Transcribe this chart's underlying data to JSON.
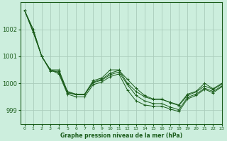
{
  "title": "Graphe pression niveau de la mer (hPa)",
  "background_color": "#cceedd",
  "grid_color": "#aaccbb",
  "line_color": "#1a5c1a",
  "xlim": [
    -0.5,
    23
  ],
  "ylim": [
    998.5,
    1003.0
  ],
  "yticks": [
    999,
    1000,
    1001,
    1002
  ],
  "xticks": [
    0,
    1,
    2,
    3,
    4,
    5,
    6,
    7,
    8,
    9,
    10,
    11,
    12,
    13,
    14,
    15,
    16,
    17,
    18,
    19,
    20,
    21,
    22,
    23
  ],
  "series": [
    [
      1002.7,
      1002.0,
      1001.0,
      1000.5,
      1000.5,
      999.7,
      999.6,
      999.6,
      1000.1,
      1000.2,
      1000.5,
      1000.5,
      1000.0,
      999.7,
      999.5,
      999.4,
      999.4,
      999.3,
      999.2,
      999.6,
      999.7,
      1000.0,
      999.8,
      1000.0
    ],
    [
      1002.7,
      1001.9,
      1001.0,
      1000.45,
      1000.45,
      999.68,
      999.58,
      999.58,
      1000.05,
      1000.15,
      1000.38,
      1000.48,
      1000.15,
      999.82,
      999.55,
      999.42,
      999.42,
      999.28,
      999.18,
      999.55,
      999.68,
      999.9,
      999.78,
      999.96
    ],
    [
      1002.7,
      1002.0,
      1001.0,
      1000.5,
      1000.4,
      999.65,
      999.58,
      999.58,
      1000.02,
      1000.12,
      1000.32,
      1000.42,
      999.95,
      999.55,
      999.35,
      999.25,
      999.25,
      999.12,
      999.02,
      999.48,
      999.6,
      999.82,
      999.7,
      999.9
    ],
    [
      1002.7,
      1001.9,
      1001.0,
      1000.5,
      1000.35,
      999.6,
      999.5,
      999.5,
      999.95,
      1000.05,
      1000.25,
      1000.35,
      999.75,
      999.35,
      999.2,
      999.15,
      999.15,
      999.05,
      998.95,
      999.42,
      999.55,
      999.78,
      999.65,
      999.87
    ]
  ]
}
